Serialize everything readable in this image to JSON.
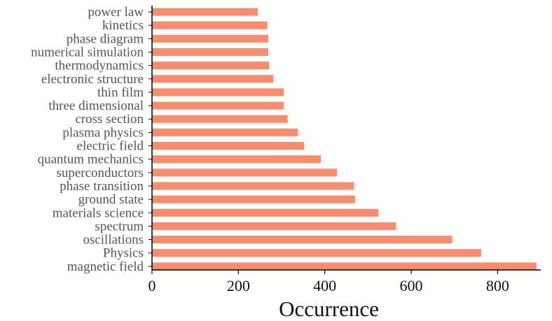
{
  "chart_data": {
    "type": "bar",
    "orientation": "horizontal",
    "categories": [
      "magnetic field",
      "Physics",
      "oscillations",
      "spectrum",
      "materials science",
      "ground state",
      "phase transition",
      "superconductors",
      "quantum mechanics",
      "electric field",
      "plasma physics",
      "cross section",
      "three dimensional",
      "thin film",
      "electronic structure",
      "thermodynamics",
      "numerical simulation",
      "phase diagram",
      "kinetics",
      "power law"
    ],
    "values": [
      890,
      762,
      695,
      565,
      524,
      470,
      468,
      428,
      391,
      352,
      338,
      314,
      305,
      305,
      281,
      271,
      269,
      269,
      267,
      245
    ],
    "xlabel": "Occurrence",
    "ylabel": "",
    "xlim": [
      0,
      900
    ],
    "xticks": [
      "0",
      "200",
      "400",
      "600",
      "800"
    ],
    "bar_color": "#fa8c6e",
    "grid": false
  }
}
